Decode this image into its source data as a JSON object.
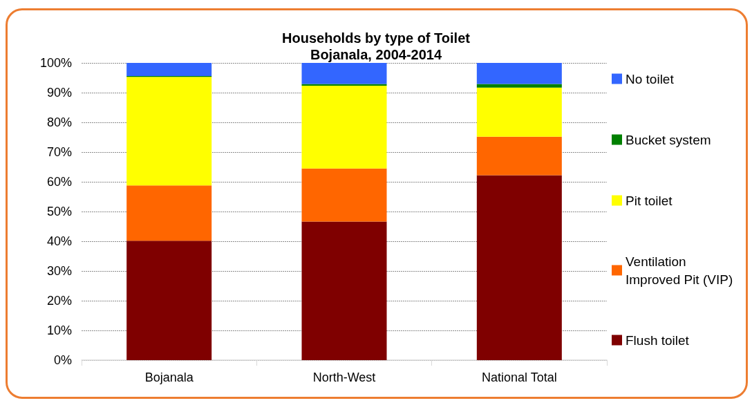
{
  "chart_data": {
    "type": "bar",
    "title": "Households by type of Toilet",
    "subtitle": "Bojanala, 2004-2014",
    "categories": [
      "Bojanala",
      "North-West",
      "National Total"
    ],
    "series": [
      {
        "name": "Flush toilet",
        "color": "#7f0000",
        "values": [
          40.2,
          46.6,
          62.2
        ]
      },
      {
        "name": "Ventilation Improved Pit (VIP)",
        "color": "#ff6600",
        "values": [
          18.6,
          17.9,
          13.0
        ]
      },
      {
        "name": "Pit toilet",
        "color": "#ffff00",
        "values": [
          36.5,
          27.8,
          16.5
        ]
      },
      {
        "name": "Bucket system",
        "color": "#008000",
        "values": [
          0.3,
          0.6,
          1.2
        ]
      },
      {
        "name": "No toilet",
        "color": "#3366ff",
        "values": [
          4.4,
          7.1,
          7.1
        ]
      }
    ],
    "stacked": true,
    "ylim": [
      0,
      100
    ],
    "yticks": [
      {
        "value": 0,
        "label": "0%"
      },
      {
        "value": 10,
        "label": "10%"
      },
      {
        "value": 20,
        "label": "20%"
      },
      {
        "value": 30,
        "label": "30%"
      },
      {
        "value": 40,
        "label": "40%"
      },
      {
        "value": 50,
        "label": "50%"
      },
      {
        "value": 60,
        "label": "60%"
      },
      {
        "value": 70,
        "label": "70%"
      },
      {
        "value": 80,
        "label": "80%"
      },
      {
        "value": 90,
        "label": "90%"
      },
      {
        "value": 100,
        "label": "100%"
      }
    ],
    "grid": "y",
    "legend": "right"
  }
}
